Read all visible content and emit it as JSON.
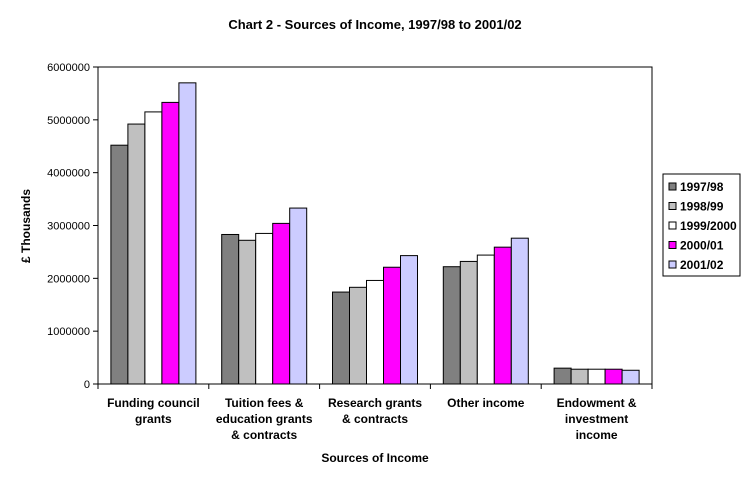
{
  "chart_data": {
    "type": "bar",
    "title": "Chart 2 - Sources of Income, 1997/98 to 2001/02",
    "xlabel": "Sources of Income",
    "ylabel": "£ Thousands",
    "ylim": [
      0,
      6000000
    ],
    "yticks": [
      0,
      1000000,
      2000000,
      3000000,
      4000000,
      5000000,
      6000000
    ],
    "ytick_labels": [
      "0",
      "1000000",
      "2000000",
      "3000000",
      "4000000",
      "5000000",
      "6000000"
    ],
    "grid": false,
    "legend_position": "right",
    "categories": [
      [
        "Funding council",
        "grants"
      ],
      [
        "Tuition fees &",
        "education grants",
        "& contracts"
      ],
      [
        "Research grants",
        "& contracts"
      ],
      [
        "Other income"
      ],
      [
        "Endowment &",
        "investment",
        "income"
      ]
    ],
    "series": [
      {
        "name": "1997/98",
        "color": "#808080",
        "values": [
          4520000,
          2830000,
          1740000,
          2220000,
          300000
        ]
      },
      {
        "name": "1998/99",
        "color": "#c0c0c0",
        "values": [
          4920000,
          2720000,
          1830000,
          2320000,
          280000
        ]
      },
      {
        "name": "1999/2000",
        "color": "#ffffff",
        "values": [
          5150000,
          2850000,
          1960000,
          2440000,
          280000
        ]
      },
      {
        "name": "2000/01",
        "color": "#ff00ff",
        "values": [
          5330000,
          3040000,
          2210000,
          2590000,
          280000
        ]
      },
      {
        "name": "2001/02",
        "color": "#ccccff",
        "values": [
          5700000,
          3330000,
          2430000,
          2760000,
          260000
        ]
      }
    ]
  }
}
